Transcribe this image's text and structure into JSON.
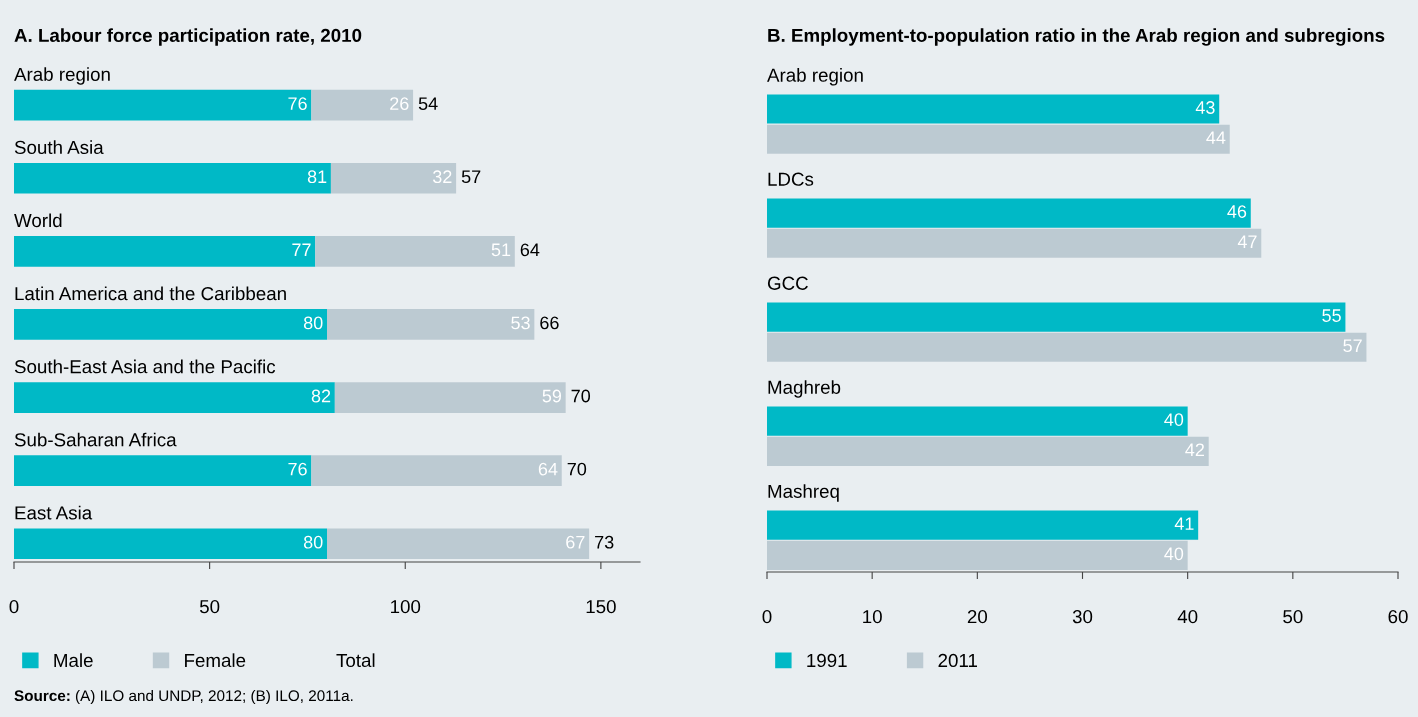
{
  "chart_data": [
    {
      "type": "bar",
      "title": "A. Labour force participation rate, 2010",
      "orientation": "horizontal",
      "stacked": true,
      "categories": [
        "Arab region",
        "South Asia",
        "World",
        "Latin America and the Caribbean",
        "South-East Asia and the Pacific",
        "Sub-Saharan Africa",
        "East Asia"
      ],
      "series": [
        {
          "name": "Male",
          "color": "#00b9c6",
          "values": [
            76,
            81,
            77,
            80,
            82,
            76,
            80
          ]
        },
        {
          "name": "Female",
          "color": "#bccad2",
          "values": [
            26,
            32,
            51,
            53,
            59,
            64,
            67
          ]
        }
      ],
      "data_labels": true,
      "xlim": [
        0,
        160
      ],
      "xticks": [
        0,
        50,
        100,
        150
      ],
      "grid": false,
      "legend": "bottom",
      "annotations": [
        "Total",
        "Source: (A) ILO and UNDP, 2012; (B) ILO, 2011a.",
        {
          "text": "54",
          "x": 102,
          "y": "Arab region"
        },
        {
          "text": "57",
          "x": 113,
          "y": "South Asia"
        },
        {
          "text": "64",
          "x": 128,
          "y": "World"
        },
        {
          "text": "66",
          "x": 133,
          "y": "Latin America and the Caribbean"
        },
        {
          "text": "70",
          "x": 141,
          "y": "South-East Asia and the Pacific"
        },
        {
          "text": "70",
          "x": 140,
          "y": "Sub-Saharan Africa"
        },
        {
          "text": "73",
          "x": 147,
          "y": "East Asia"
        }
      ]
    },
    {
      "type": "bar",
      "title": "B. Employment-to-population ratio in the Arab region and subregions",
      "orientation": "horizontal",
      "categories": [
        "Arab region",
        "LDCs",
        "GCC",
        "Maghreb",
        "Mashreq"
      ],
      "series": [
        {
          "name": "1991",
          "color": "#00b9c6",
          "values": [
            43,
            46,
            55,
            40,
            41
          ]
        },
        {
          "name": "2011",
          "color": "#bccad2",
          "values": [
            44,
            47,
            57,
            42,
            40
          ]
        }
      ],
      "data_labels": true,
      "xlim": [
        0,
        60
      ],
      "xticks": [
        0,
        10,
        20,
        30,
        40,
        50,
        60
      ],
      "grid": false,
      "legend": "bottom"
    }
  ]
}
